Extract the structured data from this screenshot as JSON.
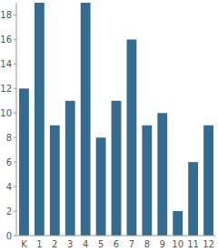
{
  "chart_data": {
    "type": "bar",
    "categories": [
      "K",
      "1",
      "2",
      "3",
      "4",
      "5",
      "6",
      "7",
      "8",
      "9",
      "10",
      "11",
      "12"
    ],
    "values": [
      12,
      19,
      9,
      11,
      19,
      8,
      11,
      16,
      9,
      10,
      2,
      6,
      9
    ],
    "color": "#346b8f",
    "ylim": [
      0,
      19
    ],
    "yticks": [
      0,
      2,
      4,
      6,
      8,
      10,
      12,
      14,
      16,
      18
    ],
    "grid": false
  }
}
